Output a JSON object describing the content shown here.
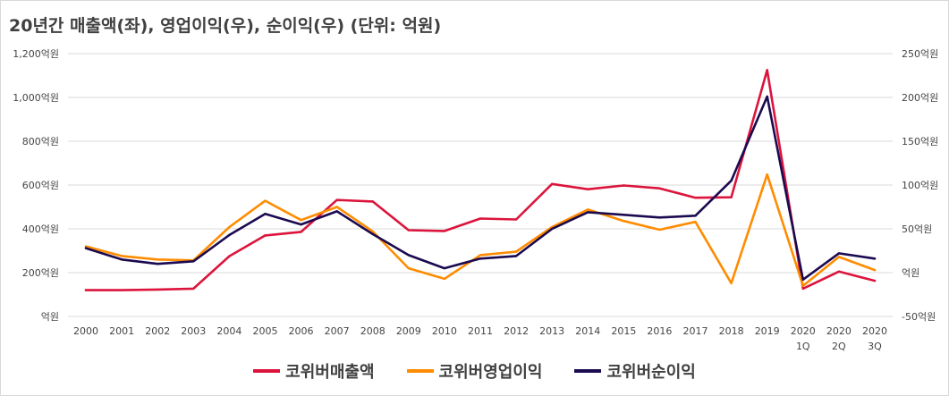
{
  "chart_data": {
    "type": "line",
    "title": "20년간 매출액(좌), 영업이익(우), 순이익(우) (단위: 억원)",
    "categories": [
      [
        "2000"
      ],
      [
        "2001"
      ],
      [
        "2002"
      ],
      [
        "2003"
      ],
      [
        "2004"
      ],
      [
        "2005"
      ],
      [
        "2006"
      ],
      [
        "2007"
      ],
      [
        "2008"
      ],
      [
        "2009"
      ],
      [
        "2010"
      ],
      [
        "2011"
      ],
      [
        "2012"
      ],
      [
        "2013"
      ],
      [
        "2014"
      ],
      [
        "2015"
      ],
      [
        "2016"
      ],
      [
        "2017"
      ],
      [
        "2018"
      ],
      [
        "2019"
      ],
      [
        "2020",
        "1Q"
      ],
      [
        "2020",
        "2Q"
      ],
      [
        "2020",
        "3Q"
      ]
    ],
    "y_left": {
      "ticks": [
        0,
        200,
        400,
        600,
        800,
        1000,
        1200
      ],
      "tick_labels": [
        "억원",
        "200억원",
        "400억원",
        "600억원",
        "800억원",
        "1,000억원",
        "1,200억원"
      ],
      "range": [
        0,
        1200
      ]
    },
    "y_right": {
      "ticks": [
        -50,
        0,
        50,
        100,
        150,
        200,
        250
      ],
      "tick_labels": [
        "-50억원",
        "억원",
        "50억원",
        "100억원",
        "150억원",
        "200억원",
        "250억원"
      ],
      "range": [
        -50,
        250
      ]
    },
    "grid": "horizontal",
    "legend_position": "bottom",
    "series": [
      {
        "name": "코위버매출액",
        "axis": "left",
        "color": "#dc143c",
        "values": [
          120,
          120,
          123,
          127,
          275,
          370,
          386,
          532,
          525,
          394,
          390,
          447,
          443,
          605,
          581,
          598,
          585,
          542,
          544,
          1125,
          127,
          205,
          163
        ]
      },
      {
        "name": "코위버영업이익",
        "axis": "right",
        "color": "#ff8c00",
        "values": [
          30,
          19,
          15,
          14,
          52,
          82,
          60,
          75,
          47,
          5,
          -7,
          20,
          24,
          52,
          72,
          59,
          49,
          58,
          -12,
          112,
          -15,
          18,
          3
        ]
      },
      {
        "name": "코위버순이익",
        "axis": "right",
        "color": "#1b0a4f",
        "values": [
          28,
          15,
          10,
          13,
          43,
          67,
          55,
          70,
          44,
          20,
          5,
          16,
          19,
          50,
          69,
          66,
          63,
          65,
          105,
          201,
          -8,
          22,
          16
        ]
      }
    ]
  }
}
